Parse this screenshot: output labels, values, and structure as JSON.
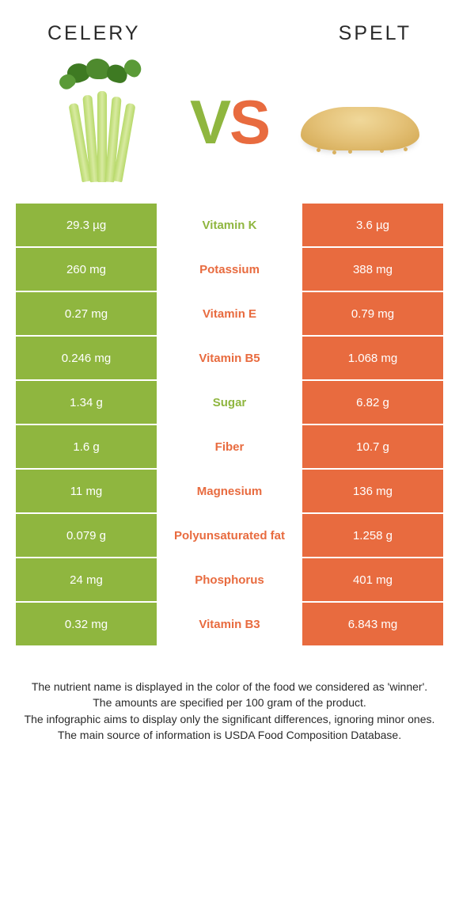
{
  "colors": {
    "celery": "#8fb63f",
    "spelt": "#e86b3f",
    "text": "#2a2a2a"
  },
  "header": {
    "left": "Celery",
    "right": "Spelt"
  },
  "vs": {
    "v": "V",
    "s": "S"
  },
  "rows": [
    {
      "left": "29.3 µg",
      "label": "Vitamin K",
      "right": "3.6 µg",
      "winner": "celery"
    },
    {
      "left": "260 mg",
      "label": "Potassium",
      "right": "388 mg",
      "winner": "spelt"
    },
    {
      "left": "0.27 mg",
      "label": "Vitamin E",
      "right": "0.79 mg",
      "winner": "spelt"
    },
    {
      "left": "0.246 mg",
      "label": "Vitamin B5",
      "right": "1.068 mg",
      "winner": "spelt"
    },
    {
      "left": "1.34 g",
      "label": "Sugar",
      "right": "6.82 g",
      "winner": "celery"
    },
    {
      "left": "1.6 g",
      "label": "Fiber",
      "right": "10.7 g",
      "winner": "spelt"
    },
    {
      "left": "11 mg",
      "label": "Magnesium",
      "right": "136 mg",
      "winner": "spelt"
    },
    {
      "left": "0.079 g",
      "label": "Polyunsaturated fat",
      "right": "1.258 g",
      "winner": "spelt"
    },
    {
      "left": "24 mg",
      "label": "Phosphorus",
      "right": "401 mg",
      "winner": "spelt"
    },
    {
      "left": "0.32 mg",
      "label": "Vitamin B3",
      "right": "6.843 mg",
      "winner": "spelt"
    }
  ],
  "footer": {
    "l1": "The nutrient name is displayed in the color of the food we considered as 'winner'.",
    "l2": "The amounts are specified per 100 gram of the product.",
    "l3": "The infographic aims to display only the significant differences, ignoring minor ones.",
    "l4": "The main source of information is USDA Food Composition Database."
  }
}
